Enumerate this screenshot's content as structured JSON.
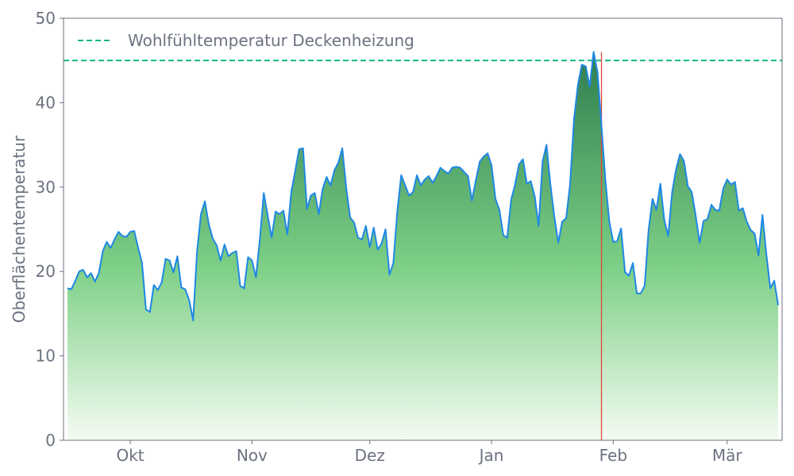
{
  "chart_data": {
    "type": "area",
    "ylabel": "Oberflächentemperatur",
    "xlabel": "",
    "ylim": [
      0,
      50
    ],
    "yticks": [
      0,
      10,
      20,
      30,
      40,
      50
    ],
    "grid": false,
    "legend_position": "top-left",
    "x_start": "2023-09-15",
    "x_step_days": 1,
    "month_ticks": [
      {
        "label": "Okt",
        "date": "2023-10-01"
      },
      {
        "label": "Nov",
        "date": "2023-11-01"
      },
      {
        "label": "Dez",
        "date": "2023-12-01"
      },
      {
        "label": "Jan",
        "date": "2024-01-01"
      },
      {
        "label": "Feb",
        "date": "2024-02-01"
      },
      {
        "label": "Mär",
        "date": "2024-03-01"
      }
    ],
    "reference_line": {
      "label": "Wohlfühltemperatur Deckenheizung",
      "value": 45
    },
    "marker_line": {
      "date": "2024-01-29"
    },
    "series": [
      {
        "values": [
          18.0,
          17.9,
          18.9,
          20.0,
          20.2,
          19.3,
          19.8,
          18.8,
          19.8,
          22.4,
          23.5,
          22.8,
          23.8,
          24.7,
          24.2,
          24.1,
          24.7,
          24.8,
          22.8,
          21.0,
          15.5,
          15.2,
          18.4,
          17.8,
          18.7,
          21.5,
          21.3,
          19.9,
          21.8,
          18.1,
          17.9,
          16.6,
          14.2,
          22.3,
          26.8,
          28.3,
          25.6,
          23.9,
          23.1,
          21.3,
          23.2,
          21.8,
          22.2,
          22.4,
          18.3,
          18.0,
          21.7,
          21.3,
          19.3,
          23.8,
          29.3,
          26.6,
          24.0,
          27.1,
          26.8,
          27.2,
          24.4,
          29.4,
          31.9,
          34.5,
          34.6,
          27.4,
          29.0,
          29.3,
          26.8,
          29.8,
          31.2,
          30.2,
          32.0,
          32.9,
          34.6,
          29.9,
          26.4,
          25.8,
          24.0,
          23.8,
          25.4,
          22.9,
          25.2,
          22.6,
          23.3,
          25.0,
          19.6,
          21.0,
          27.1,
          31.4,
          30.2,
          29.0,
          29.4,
          31.4,
          30.2,
          30.9,
          31.3,
          30.5,
          31.3,
          32.3,
          31.9,
          31.6,
          32.3,
          32.4,
          32.3,
          31.8,
          31.3,
          28.4,
          30.8,
          33.0,
          33.6,
          34.0,
          32.6,
          28.6,
          27.3,
          24.3,
          24.0,
          28.5,
          30.3,
          32.7,
          33.3,
          30.4,
          30.7,
          28.9,
          25.4,
          33.0,
          35.0,
          30.3,
          26.5,
          23.4,
          25.9,
          26.3,
          30.3,
          38.0,
          42.1,
          44.5,
          44.3,
          41.9,
          46.0,
          43.6,
          37.3,
          30.8,
          25.9,
          23.5,
          23.6,
          25.1,
          19.9,
          19.5,
          21.0,
          17.4,
          17.4,
          18.3,
          24.9,
          28.6,
          27.3,
          30.4,
          26.1,
          24.2,
          29.4,
          32.1,
          33.9,
          33.1,
          30.1,
          29.4,
          26.6,
          23.4,
          26.0,
          26.2,
          27.9,
          27.3,
          27.2,
          29.8,
          30.9,
          30.3,
          30.6,
          27.2,
          27.5,
          25.9,
          24.9,
          24.5,
          21.9,
          26.7,
          22.0,
          18.0,
          18.9,
          16.0
        ]
      }
    ]
  },
  "colors": {
    "line": "#1e88e5",
    "area_top": "#2e7d4f",
    "area_mid": "#7ccf85",
    "area_bottom": "#f4fbf2",
    "reference": "#10b981",
    "marker": "#e0453a",
    "axis": "#6b7280",
    "text": "#6b7280"
  }
}
